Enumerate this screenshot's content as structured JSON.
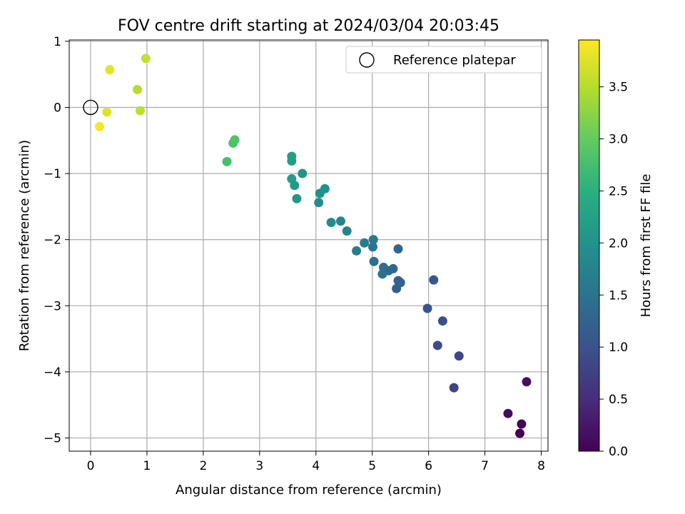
{
  "chart_data": {
    "type": "scatter",
    "title": "FOV centre drift starting at 2024/03/04 20:03:45",
    "xlabel": "Angular distance from reference (arcmin)",
    "ylabel": "Rotation from reference (arcmin)",
    "xlim": [
      -0.38,
      8.12
    ],
    "ylim": [
      -5.2,
      1.02
    ],
    "x_ticks": [
      0,
      1,
      2,
      3,
      4,
      5,
      6,
      7,
      8
    ],
    "x_tick_labels": [
      "0",
      "1",
      "2",
      "3",
      "4",
      "5",
      "6",
      "7",
      "8"
    ],
    "y_ticks": [
      1,
      0,
      -1,
      -2,
      -3,
      -4,
      -5
    ],
    "y_tick_labels": [
      "1",
      "0",
      "−1",
      "−2",
      "−3",
      "−4",
      "−5"
    ],
    "grid": true,
    "legend": {
      "position": "top-right",
      "entries": [
        "Reference platepar"
      ]
    },
    "reference_point": {
      "x": 0,
      "y": 0,
      "marker": "open-circle"
    },
    "colorbar": {
      "label": "Hours from first FF file",
      "colormap": "viridis",
      "range": [
        0,
        3.95
      ],
      "ticks": [
        0,
        0.5,
        1,
        1.5,
        2,
        2.5,
        3,
        3.5
      ],
      "tick_labels": [
        "0.0",
        "0.5",
        "1.0",
        "1.5",
        "2.0",
        "2.5",
        "3.0",
        "3.5"
      ]
    },
    "points": [
      {
        "x": 7.62,
        "y": -4.93,
        "hours": 0.0
      },
      {
        "x": 7.65,
        "y": -4.79,
        "hours": 0.06
      },
      {
        "x": 7.41,
        "y": -4.63,
        "hours": 0.11
      },
      {
        "x": 7.74,
        "y": -4.15,
        "hours": 0.17
      },
      {
        "x": 6.45,
        "y": -4.24,
        "hours": 0.8
      },
      {
        "x": 6.54,
        "y": -3.76,
        "hours": 0.86
      },
      {
        "x": 6.16,
        "y": -3.6,
        "hours": 0.92
      },
      {
        "x": 6.25,
        "y": -3.23,
        "hours": 0.98
      },
      {
        "x": 5.98,
        "y": -3.04,
        "hours": 1.04
      },
      {
        "x": 6.09,
        "y": -2.61,
        "hours": 1.1
      },
      {
        "x": 5.43,
        "y": -2.74,
        "hours": 1.18
      },
      {
        "x": 5.5,
        "y": -2.65,
        "hours": 1.22
      },
      {
        "x": 5.46,
        "y": -2.62,
        "hours": 1.26
      },
      {
        "x": 5.46,
        "y": -2.14,
        "hours": 1.3
      },
      {
        "x": 5.37,
        "y": -2.44,
        "hours": 1.34
      },
      {
        "x": 5.29,
        "y": -2.47,
        "hours": 1.38
      },
      {
        "x": 5.2,
        "y": -2.42,
        "hours": 1.42
      },
      {
        "x": 5.18,
        "y": -2.52,
        "hours": 1.46
      },
      {
        "x": 5.03,
        "y": -2.33,
        "hours": 1.5
      },
      {
        "x": 5.01,
        "y": -2.11,
        "hours": 1.55
      },
      {
        "x": 5.02,
        "y": -2.0,
        "hours": 1.6
      },
      {
        "x": 4.86,
        "y": -2.05,
        "hours": 1.65
      },
      {
        "x": 4.72,
        "y": -2.17,
        "hours": 1.7
      },
      {
        "x": 4.55,
        "y": -1.87,
        "hours": 1.78
      },
      {
        "x": 4.44,
        "y": -1.72,
        "hours": 1.82
      },
      {
        "x": 4.27,
        "y": -1.74,
        "hours": 1.86
      },
      {
        "x": 4.05,
        "y": -1.44,
        "hours": 1.92
      },
      {
        "x": 4.07,
        "y": -1.3,
        "hours": 1.96
      },
      {
        "x": 4.16,
        "y": -1.23,
        "hours": 2.0
      },
      {
        "x": 3.76,
        "y": -1.0,
        "hours": 2.04
      },
      {
        "x": 3.66,
        "y": -1.38,
        "hours": 2.08
      },
      {
        "x": 3.62,
        "y": -1.18,
        "hours": 2.12
      },
      {
        "x": 3.57,
        "y": -1.08,
        "hours": 2.16
      },
      {
        "x": 3.57,
        "y": -0.81,
        "hours": 2.18
      },
      {
        "x": 3.57,
        "y": -0.74,
        "hours": 2.2
      },
      {
        "x": 2.42,
        "y": -0.82,
        "hours": 2.75
      },
      {
        "x": 2.53,
        "y": -0.54,
        "hours": 2.8
      },
      {
        "x": 2.56,
        "y": -0.49,
        "hours": 2.85
      },
      {
        "x": 0.83,
        "y": 0.27,
        "hours": 3.5
      },
      {
        "x": 0.88,
        "y": -0.05,
        "hours": 3.55
      },
      {
        "x": 0.98,
        "y": 0.74,
        "hours": 3.6
      },
      {
        "x": 0.29,
        "y": -0.07,
        "hours": 3.75
      },
      {
        "x": 0.34,
        "y": 0.57,
        "hours": 3.8
      },
      {
        "x": 0.16,
        "y": -0.29,
        "hours": 3.9
      }
    ]
  }
}
